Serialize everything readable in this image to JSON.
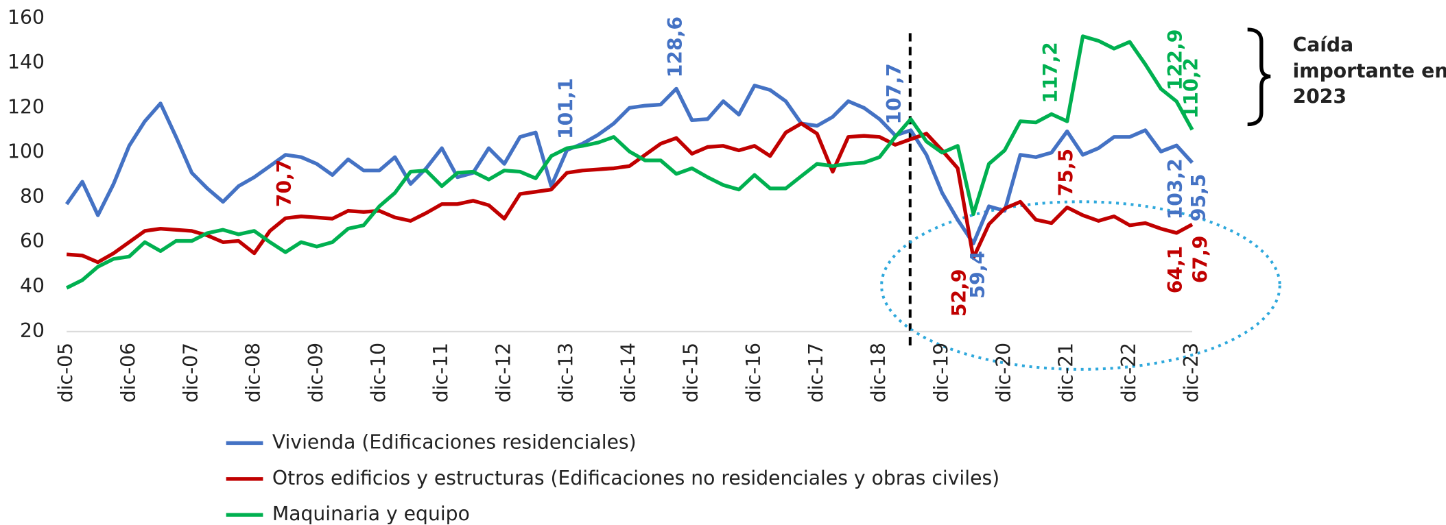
{
  "chart_data": {
    "type": "line",
    "categories": [
      "dic-05",
      null,
      null,
      null,
      "dic-06",
      null,
      null,
      null,
      "dic-07",
      null,
      null,
      null,
      "dic-08",
      null,
      null,
      null,
      "dic-09",
      null,
      null,
      null,
      "dic-10",
      null,
      null,
      null,
      "dic-11",
      null,
      null,
      null,
      "dic-12",
      null,
      null,
      null,
      "dic-13",
      null,
      null,
      null,
      "dic-14",
      null,
      null,
      null,
      "dic-15",
      null,
      null,
      null,
      "dic-16",
      null,
      null,
      null,
      "dic-17",
      null,
      null,
      null,
      "dic-18",
      null,
      null,
      null,
      "dic-19",
      null,
      null,
      null,
      "dic-20",
      null,
      null,
      null,
      "dic-21",
      null,
      null,
      null,
      "dic-22",
      null,
      null,
      null,
      "dic-23"
    ],
    "ylim": [
      20,
      160
    ],
    "yticks": [
      20,
      40,
      60,
      80,
      100,
      120,
      140,
      160
    ],
    "grid": false,
    "legend": "bottom",
    "series": [
      {
        "name": "Vivienda (Edificaciones residenciales)",
        "color": "#4472C4",
        "values": [
          77,
          87,
          72,
          86,
          103,
          114,
          122,
          107,
          91,
          84,
          78,
          85,
          89,
          94,
          99,
          98,
          95,
          90,
          97,
          92,
          92,
          98,
          86,
          93,
          102,
          89,
          91,
          102,
          95,
          107,
          109,
          85,
          101.1,
          104,
          108,
          113,
          120,
          121,
          121.5,
          128.6,
          114.5,
          115,
          123,
          117,
          130,
          128,
          123,
          113,
          112,
          116,
          123,
          120,
          115,
          107.7,
          110,
          99,
          82,
          70,
          59.4,
          76,
          74,
          99,
          98,
          100,
          109.5,
          99,
          102,
          107,
          107,
          110,
          100.5,
          103.2,
          95.5
        ],
        "value_labels": [
          null,
          null,
          null,
          null,
          null,
          null,
          null,
          null,
          null,
          null,
          null,
          null,
          null,
          null,
          null,
          null,
          null,
          null,
          null,
          null,
          null,
          null,
          null,
          null,
          null,
          null,
          null,
          null,
          null,
          null,
          null,
          null,
          "101,1",
          null,
          null,
          null,
          null,
          null,
          null,
          "128,6",
          null,
          null,
          null,
          null,
          null,
          null,
          null,
          null,
          null,
          null,
          null,
          null,
          null,
          "107,7",
          null,
          null,
          null,
          null,
          "59,4",
          null,
          null,
          null,
          null,
          null,
          null,
          null,
          null,
          null,
          null,
          null,
          null,
          "103,2",
          "95,5"
        ]
      },
      {
        "name": "Otros edificios y estructuras (Edificaciones no residenciales y obras civiles)",
        "color": "#C00000",
        "values": [
          54.5,
          54,
          51,
          55,
          60,
          65,
          66,
          65.5,
          65,
          63,
          60,
          60.5,
          55,
          65,
          70.7,
          71.5,
          71,
          70.5,
          74,
          73.5,
          74,
          71,
          69.5,
          73,
          77,
          77,
          78.5,
          76.5,
          70.5,
          81.5,
          82.5,
          83.5,
          91,
          92,
          92.5,
          93,
          94,
          99,
          104,
          106.5,
          99.5,
          102.5,
          103,
          101,
          103,
          98.5,
          109,
          113,
          108.5,
          91.5,
          107,
          107.5,
          107,
          103.5,
          106,
          108.5,
          101,
          93,
          52.9,
          68,
          75,
          78,
          70,
          68.5,
          75.5,
          72,
          69.5,
          71.5,
          67.5,
          68.5,
          66,
          64.1,
          67.9
        ],
        "value_labels": [
          null,
          null,
          null,
          null,
          null,
          null,
          null,
          null,
          null,
          null,
          null,
          null,
          null,
          null,
          "70,7",
          null,
          null,
          null,
          null,
          null,
          null,
          null,
          null,
          null,
          null,
          null,
          null,
          null,
          null,
          null,
          null,
          null,
          null,
          null,
          null,
          null,
          null,
          null,
          null,
          null,
          null,
          null,
          null,
          null,
          null,
          null,
          null,
          null,
          null,
          null,
          null,
          null,
          null,
          null,
          null,
          null,
          null,
          null,
          "52,9",
          null,
          null,
          null,
          null,
          null,
          "75,5",
          null,
          null,
          null,
          null,
          null,
          null,
          "64,1",
          "67,9"
        ]
      },
      {
        "name": "Maquinaria y equipo",
        "color": "#00B050",
        "values": [
          39.5,
          43,
          49,
          52.5,
          53.5,
          60,
          56,
          60.5,
          60.5,
          64,
          65.5,
          63.5,
          65,
          60,
          55.5,
          60,
          58,
          60,
          66,
          67.5,
          76,
          82,
          91.5,
          92,
          85,
          91,
          91.5,
          88,
          92,
          91.5,
          88.5,
          98.5,
          102,
          103,
          104.5,
          107,
          100.5,
          96.5,
          96.5,
          90.5,
          93,
          89,
          85.5,
          83.5,
          90,
          84,
          84,
          89.5,
          95,
          94,
          95,
          95.5,
          98,
          107,
          115,
          105,
          100,
          103,
          72.5,
          95,
          101,
          114,
          113.5,
          117.2,
          114,
          152,
          150,
          146.5,
          149.5,
          139.5,
          128.5,
          122.9,
          110.2
        ],
        "value_labels": [
          null,
          null,
          null,
          null,
          null,
          null,
          null,
          null,
          null,
          null,
          null,
          null,
          null,
          null,
          null,
          null,
          null,
          null,
          null,
          null,
          null,
          null,
          null,
          null,
          null,
          null,
          null,
          null,
          null,
          null,
          null,
          null,
          null,
          null,
          null,
          null,
          null,
          null,
          null,
          null,
          null,
          null,
          null,
          null,
          null,
          null,
          null,
          null,
          null,
          null,
          null,
          null,
          null,
          null,
          null,
          null,
          null,
          null,
          null,
          null,
          null,
          null,
          null,
          "117,2",
          null,
          null,
          null,
          null,
          null,
          null,
          null,
          "122,9",
          "110,2"
        ]
      }
    ],
    "annotation": [
      "Caída",
      "importante en",
      "2023"
    ]
  }
}
